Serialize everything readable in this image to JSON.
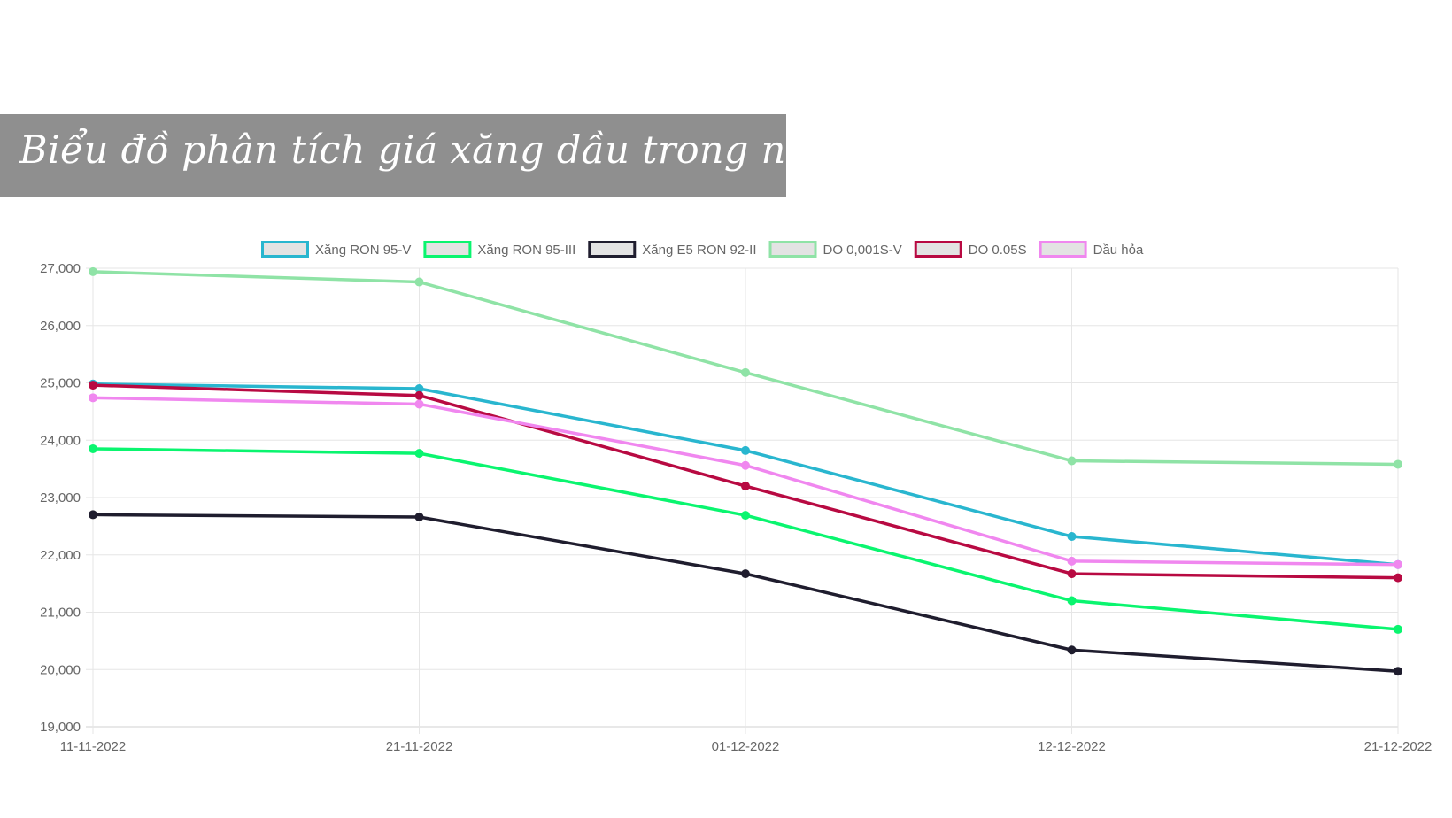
{
  "title": "Biểu đồ phân tích giá xăng dầu trong nước",
  "chart_data": {
    "type": "line",
    "title": "",
    "xlabel": "",
    "ylabel": "",
    "categories": [
      "11-11-2022",
      "21-11-2022",
      "01-12-2022",
      "12-12-2022",
      "21-12-2022"
    ],
    "ylim": [
      19000,
      27000
    ],
    "yticks": [
      "19,000",
      "20,000",
      "21,000",
      "22,000",
      "23,000",
      "24,000",
      "25,000",
      "26,000",
      "27,000"
    ],
    "grid": true,
    "legend_position": "top",
    "series": [
      {
        "name": "Xăng RON 95-V",
        "color": "#29b6cf",
        "values": [
          24980,
          24900,
          23820,
          22320,
          21830
        ]
      },
      {
        "name": "Xăng RON 95-III",
        "color": "#0af56f",
        "values": [
          23850,
          23770,
          22690,
          21200,
          20700
        ]
      },
      {
        "name": "Xăng E5 RON 92-II",
        "color": "#1f1d2e",
        "values": [
          22700,
          22660,
          21670,
          20340,
          19970
        ]
      },
      {
        "name": "DO 0,001S-V",
        "color": "#8fe3a6",
        "values": [
          26940,
          26760,
          25180,
          23640,
          23580
        ]
      },
      {
        "name": "DO 0.05S",
        "color": "#b80a42",
        "values": [
          24960,
          24780,
          23200,
          21670,
          21600
        ]
      },
      {
        "name": "Dầu hỏa",
        "color": "#f087ef",
        "values": [
          24740,
          24630,
          23560,
          21890,
          21830
        ]
      }
    ]
  }
}
